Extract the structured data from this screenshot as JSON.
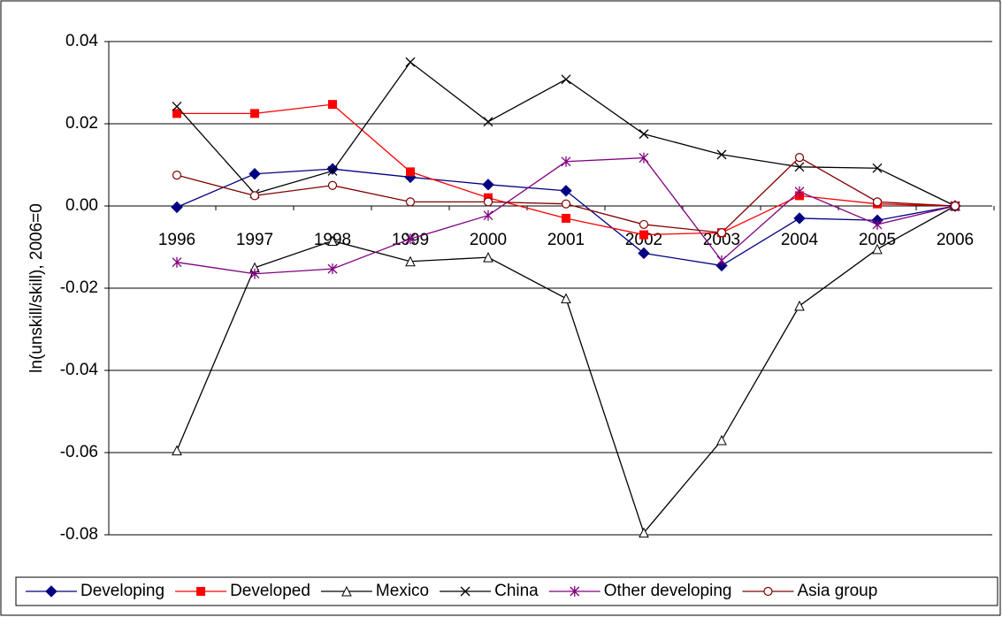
{
  "chart_data": {
    "type": "line",
    "y_label": "ln(unskill/skill), 2006=0",
    "categories": [
      "1996",
      "1997",
      "1998",
      "1999",
      "2000",
      "2001",
      "2002",
      "2003",
      "2004",
      "2005",
      "2006"
    ],
    "series": [
      {
        "name": "Developing",
        "color": "#000080",
        "marker": "diamond",
        "values": [
          -0.0003,
          0.0078,
          0.009,
          0.007,
          0.0052,
          0.0037,
          -0.0115,
          -0.0145,
          -0.003,
          -0.0035,
          0
        ]
      },
      {
        "name": "Developed",
        "color": "#ff0000",
        "marker": "square",
        "values": [
          0.0225,
          0.0225,
          0.0247,
          0.0083,
          0.002,
          -0.003,
          -0.007,
          -0.0065,
          0.0025,
          0.0005,
          0
        ]
      },
      {
        "name": "Mexico",
        "color": "#000000",
        "marker": "triangle",
        "values": [
          -0.0595,
          -0.015,
          -0.0085,
          -0.0135,
          -0.0125,
          -0.0225,
          -0.0795,
          -0.057,
          -0.0243,
          -0.0105,
          0
        ]
      },
      {
        "name": "China",
        "color": "#000000",
        "marker": "x",
        "values": [
          0.0242,
          0.003,
          0.0085,
          0.035,
          0.0205,
          0.0308,
          0.0175,
          0.0125,
          0.0095,
          0.0092,
          0
        ]
      },
      {
        "name": "Other developing",
        "color": "#800080",
        "marker": "asterisk",
        "values": [
          -0.0137,
          -0.0165,
          -0.0153,
          -0.008,
          -0.0023,
          0.0108,
          0.0117,
          -0.0133,
          0.0035,
          -0.0045,
          0
        ]
      },
      {
        "name": "Asia group",
        "color": "#800000",
        "marker": "circle",
        "values": [
          0.0075,
          0.0025,
          0.005,
          0.001,
          0.001,
          0.0005,
          -0.0045,
          -0.0065,
          0.0118,
          0.001,
          0
        ]
      }
    ],
    "ylim": [
      -0.08,
      0.04
    ],
    "yticks": [
      0.04,
      0.02,
      {
        "value": 0,
        "label": "0.00"
      },
      -0.02,
      -0.04,
      -0.06,
      -0.08
    ],
    "grid": true,
    "legend": "bottom"
  }
}
